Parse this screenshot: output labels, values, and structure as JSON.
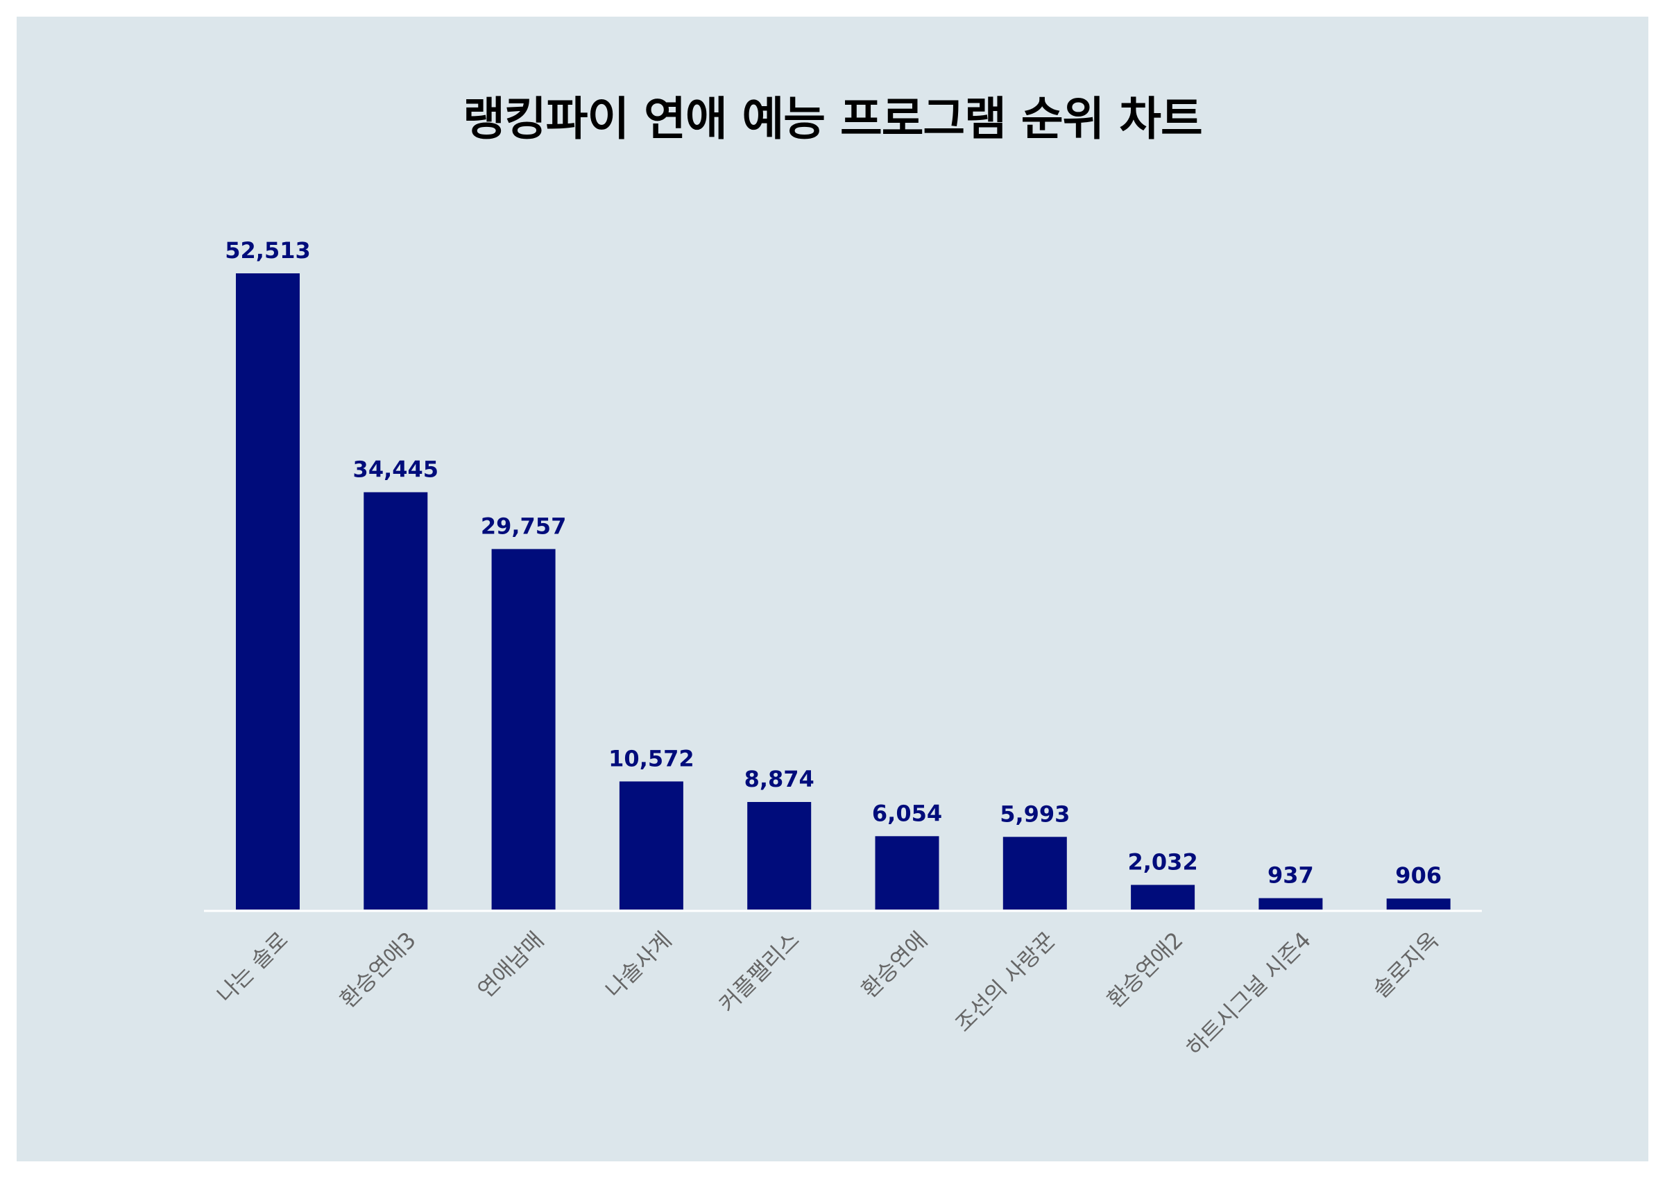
{
  "chart_data": {
    "type": "bar",
    "title": "랭킹파이 연애 예능 프로그램 순위 차트",
    "xlabel": "",
    "ylabel": "",
    "categories": [
      "나는 솔로",
      "환승연애3",
      "연애남매",
      "나솔사계",
      "커플팰리스",
      "환승연애",
      "조선의 사랑꾼",
      "환승연애2",
      "하트시그널 시즌4",
      "솔로지옥"
    ],
    "values": [
      52513,
      34445,
      29757,
      10572,
      8874,
      6054,
      5993,
      2032,
      937,
      906
    ],
    "value_labels": [
      "52,513",
      "34,445",
      "29,757",
      "10,572",
      "8,874",
      "6,054",
      "5,993",
      "2,032",
      "937",
      "906"
    ],
    "ylim": [
      0,
      52513
    ],
    "grid": false,
    "legend": "none"
  },
  "colors": {
    "background": "#dce6eb",
    "bar": "#000c7b",
    "value_label": "#000c7b",
    "tick_label": "#666666",
    "axis_line": "#ffffff"
  }
}
